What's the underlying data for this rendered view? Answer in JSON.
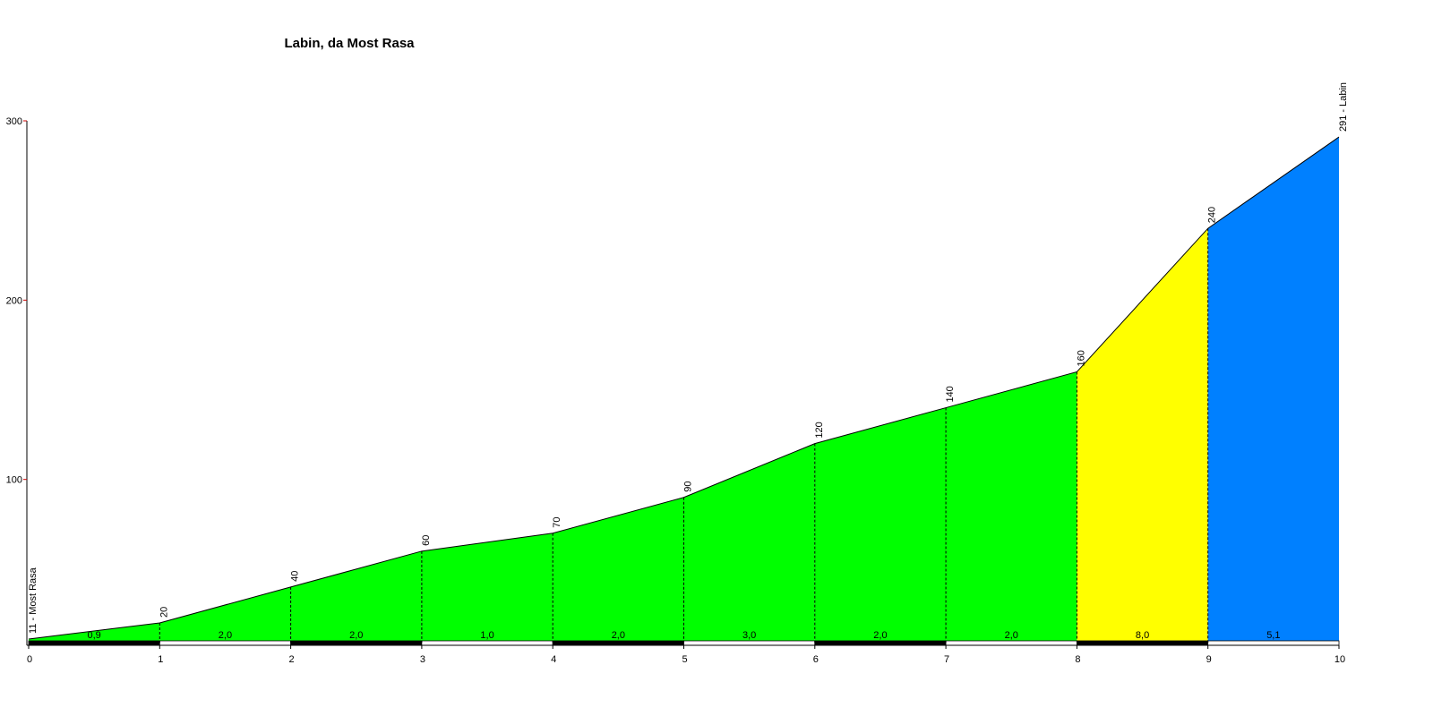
{
  "chart_data": {
    "type": "elevation-profile",
    "title": "Labin, da Most Rasa",
    "x": [
      0,
      1,
      2,
      3,
      4,
      5,
      6,
      7,
      8,
      9,
      10
    ],
    "values": [
      11,
      20,
      40,
      60,
      70,
      90,
      120,
      140,
      160,
      240,
      291
    ],
    "value_labels": [
      "11 - Most Rasa",
      "20",
      "40",
      "60",
      "70",
      "90",
      "120",
      "140",
      "160",
      "240",
      "291 - Labin"
    ],
    "gradient_labels": [
      "0,9",
      "2,0",
      "2,0",
      "1,0",
      "2,0",
      "3,0",
      "2,0",
      "2,0",
      "8,0",
      "5,1"
    ],
    "segment_colors": [
      "#00ff00",
      "#00ff00",
      "#00ff00",
      "#00ff00",
      "#00ff00",
      "#00ff00",
      "#00ff00",
      "#00ff00",
      "#ffff00",
      "#0080ff"
    ],
    "xlim": [
      0,
      10
    ],
    "xticks": [
      0,
      1,
      2,
      3,
      4,
      5,
      6,
      7,
      8,
      9,
      10
    ],
    "ylim": [
      9,
      300
    ],
    "yticks": [
      100,
      200,
      300
    ]
  }
}
